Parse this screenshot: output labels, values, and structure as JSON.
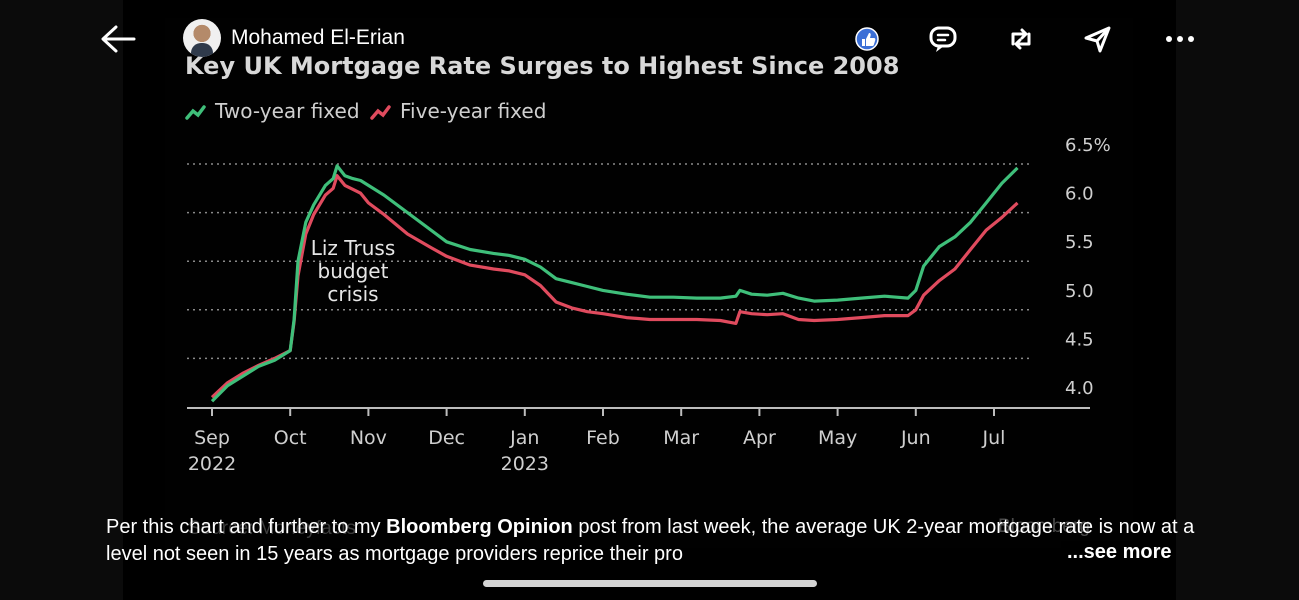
{
  "post": {
    "author": "Mohamed El-Erian",
    "caption_pre": "Per this chart and further to my ",
    "caption_bold": "Bloomberg Opinion",
    "caption_post": " post from last week, the average UK 2-year mortgage rate is now at a level not seen in 15 years as mortgage providers reprice their pro",
    "see_more": "...see more",
    "source_ghost": "Source: Moneyfacts",
    "ghost_right": "Bloomberg"
  },
  "icons": {
    "back": "arrow-left-icon",
    "like": "thumbs-up-icon",
    "comment": "comment-icon",
    "repost": "repost-icon",
    "send": "send-icon",
    "more": "more-dots-icon"
  },
  "colors": {
    "two_year": "#3fbf7a",
    "five_year": "#e04b5e",
    "like_badge": "#3b6fd6"
  },
  "chart_data": {
    "type": "line",
    "title": "Key UK Mortgage Rate Surges to Highest Since 2008",
    "ylim": [
      4.0,
      6.5
    ],
    "yticks": [
      "6.5%",
      "6.0",
      "5.5",
      "5.0",
      "4.5",
      "4.0"
    ],
    "ytick_values": [
      6.5,
      6.0,
      5.5,
      5.0,
      4.5,
      4.0
    ],
    "x_months": [
      "Sep",
      "Oct",
      "Nov",
      "Dec",
      "Jan",
      "Feb",
      "Mar",
      "Apr",
      "May",
      "Jun",
      "Jul"
    ],
    "x_years": [
      {
        "label": "2022",
        "month_index": 0
      },
      {
        "label": "2023",
        "month_index": 4
      }
    ],
    "legend_placement": "top-left",
    "annotation": [
      "Liz Truss",
      "budget",
      "crisis"
    ],
    "series": [
      {
        "name": "Two-year fixed",
        "x": [
          0,
          0.2,
          0.4,
          0.6,
          0.8,
          1.0,
          1.05,
          1.1,
          1.2,
          1.3,
          1.45,
          1.55,
          1.6,
          1.7,
          1.8,
          1.9,
          2.0,
          2.2,
          2.5,
          2.8,
          3.0,
          3.3,
          3.6,
          3.8,
          4.0,
          4.2,
          4.4,
          4.6,
          4.8,
          5.0,
          5.3,
          5.6,
          5.9,
          6.2,
          6.5,
          6.7,
          6.75,
          6.9,
          7.1,
          7.3,
          7.5,
          7.7,
          8.0,
          8.3,
          8.6,
          8.9,
          9.0,
          9.1,
          9.3,
          9.5,
          9.7,
          9.9,
          10.1,
          10.3
        ],
        "values": [
          4.06,
          4.22,
          4.32,
          4.42,
          4.48,
          4.58,
          4.9,
          5.5,
          5.9,
          6.08,
          6.28,
          6.35,
          6.48,
          6.38,
          6.35,
          6.33,
          6.28,
          6.18,
          6.0,
          5.82,
          5.7,
          5.62,
          5.58,
          5.56,
          5.52,
          5.44,
          5.32,
          5.28,
          5.24,
          5.2,
          5.16,
          5.13,
          5.13,
          5.12,
          5.12,
          5.14,
          5.2,
          5.16,
          5.15,
          5.17,
          5.12,
          5.09,
          5.1,
          5.12,
          5.14,
          5.12,
          5.2,
          5.45,
          5.65,
          5.75,
          5.9,
          6.1,
          6.3,
          6.46
        ]
      },
      {
        "name": "Five-year fixed",
        "x": [
          0,
          0.2,
          0.4,
          0.6,
          0.8,
          1.0,
          1.05,
          1.1,
          1.2,
          1.3,
          1.45,
          1.55,
          1.6,
          1.7,
          1.8,
          1.9,
          2.0,
          2.2,
          2.5,
          2.8,
          3.0,
          3.3,
          3.6,
          3.8,
          4.0,
          4.2,
          4.4,
          4.6,
          4.8,
          5.0,
          5.3,
          5.6,
          5.9,
          6.2,
          6.5,
          6.7,
          6.75,
          6.9,
          7.1,
          7.3,
          7.5,
          7.7,
          8.0,
          8.3,
          8.6,
          8.9,
          9.0,
          9.1,
          9.3,
          9.5,
          9.7,
          9.9,
          10.1,
          10.3
        ],
        "values": [
          4.1,
          4.25,
          4.35,
          4.43,
          4.5,
          4.58,
          4.88,
          5.35,
          5.78,
          5.98,
          6.18,
          6.25,
          6.38,
          6.28,
          6.24,
          6.2,
          6.1,
          5.98,
          5.78,
          5.64,
          5.55,
          5.46,
          5.42,
          5.4,
          5.36,
          5.25,
          5.08,
          5.02,
          4.98,
          4.96,
          4.92,
          4.9,
          4.9,
          4.9,
          4.89,
          4.86,
          4.98,
          4.96,
          4.95,
          4.96,
          4.9,
          4.89,
          4.9,
          4.92,
          4.94,
          4.94,
          5.0,
          5.15,
          5.3,
          5.42,
          5.62,
          5.82,
          5.95,
          6.1
        ]
      }
    ]
  }
}
